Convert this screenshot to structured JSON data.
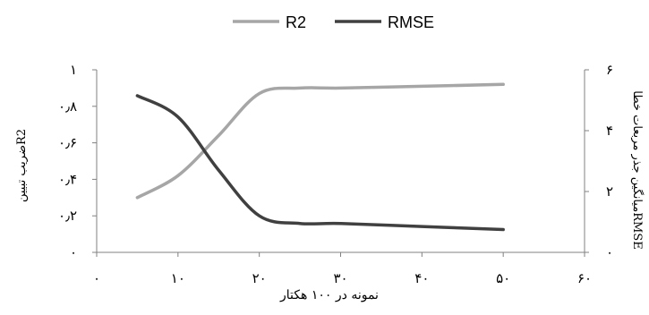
{
  "chart_data": {
    "type": "line",
    "title": "",
    "xlabel": "نمونه در ۱۰۰ هکتار",
    "ylabel_left": "ضریب تبیینR2",
    "ylabel_right": "میانگین جذر مربعات خطاRMSE",
    "xlim": [
      0,
      60
    ],
    "ylim_left": [
      0,
      1
    ],
    "ylim_right": [
      0,
      6
    ],
    "x_ticks": [
      0,
      10,
      20,
      30,
      40,
      50,
      60
    ],
    "x_tick_labels": [
      "۰",
      "۱۰",
      "۲۰",
      "۳۰",
      "۴۰",
      "۵۰",
      "۶۰"
    ],
    "y_left_ticks": [
      0,
      0.2,
      0.4,
      0.6,
      0.8,
      1
    ],
    "y_left_tick_labels": [
      "۰",
      "۰٫۲",
      "۰٫۴",
      "۰٫۶",
      "۰٫۸",
      "۱"
    ],
    "y_right_ticks": [
      0,
      2,
      4,
      6
    ],
    "y_right_tick_labels": [
      "۰",
      "۲",
      "۴",
      "۶"
    ],
    "grid": false,
    "legend_position": "top-center",
    "series": [
      {
        "name": "R2",
        "axis": "left",
        "color": "#a6a6a6",
        "x": [
          5,
          10,
          15,
          20,
          25,
          30,
          40,
          50
        ],
        "y": [
          0.3,
          0.42,
          0.64,
          0.87,
          0.9,
          0.9,
          0.91,
          0.92
        ]
      },
      {
        "name": "RMSE",
        "axis": "right",
        "color": "#404040",
        "x": [
          5,
          10,
          15,
          20,
          25,
          30,
          40,
          50
        ],
        "y": [
          5.15,
          4.45,
          2.7,
          1.2,
          0.95,
          0.95,
          0.85,
          0.75
        ]
      }
    ]
  }
}
